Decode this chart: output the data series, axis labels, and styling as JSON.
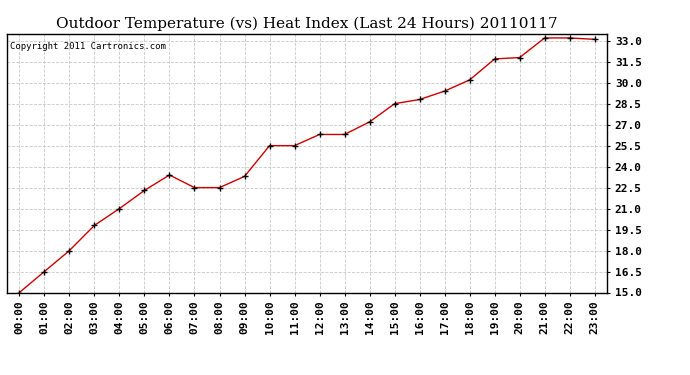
{
  "title": "Outdoor Temperature (vs) Heat Index (Last 24 Hours) 20110117",
  "copyright": "Copyright 2011 Cartronics.com",
  "x_labels": [
    "00:00",
    "01:00",
    "02:00",
    "03:00",
    "04:00",
    "05:00",
    "06:00",
    "07:00",
    "08:00",
    "09:00",
    "10:00",
    "11:00",
    "12:00",
    "13:00",
    "14:00",
    "15:00",
    "16:00",
    "17:00",
    "18:00",
    "19:00",
    "20:00",
    "21:00",
    "22:00",
    "23:00"
  ],
  "y_values": [
    15.0,
    16.5,
    18.0,
    19.8,
    21.0,
    22.3,
    23.4,
    22.5,
    22.5,
    23.3,
    25.5,
    25.5,
    26.3,
    26.3,
    27.2,
    28.5,
    28.8,
    29.4,
    30.2,
    31.7,
    31.8,
    33.2,
    33.2,
    33.1
  ],
  "ylim": [
    15.0,
    33.5
  ],
  "yticks": [
    15.0,
    16.5,
    18.0,
    19.5,
    21.0,
    22.5,
    24.0,
    25.5,
    27.0,
    28.5,
    30.0,
    31.5,
    33.0
  ],
  "line_color": "#cc0000",
  "marker": "+",
  "marker_color": "#000000",
  "marker_size": 4,
  "bg_color": "#ffffff",
  "grid_color": "#bbbbbb",
  "title_fontsize": 11,
  "tick_fontsize": 8,
  "copyright_fontsize": 6.5
}
